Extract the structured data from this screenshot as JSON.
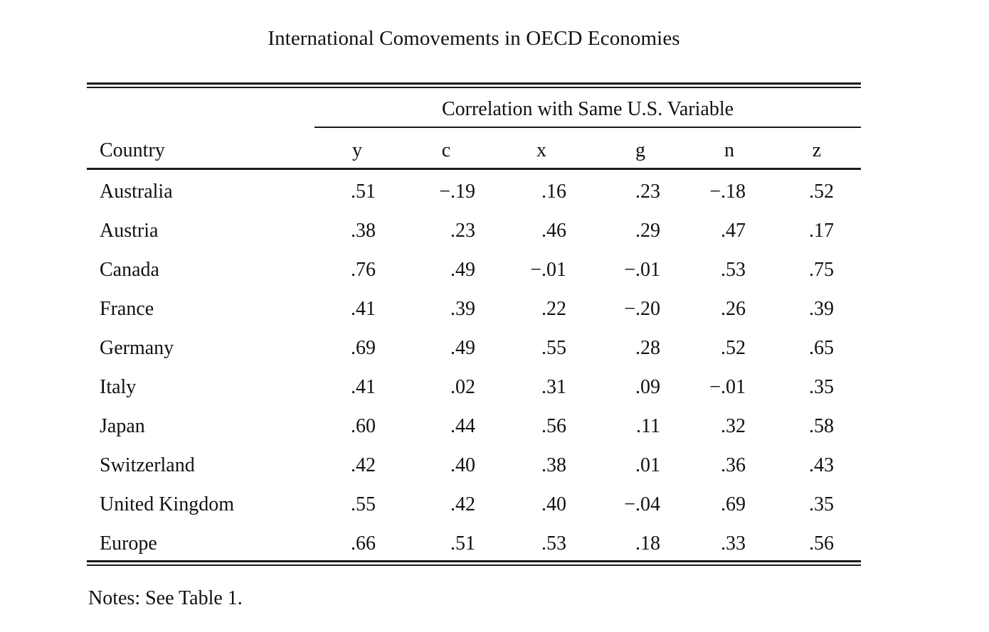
{
  "title": "International Comovements in OECD Economies",
  "spanner_label": "Correlation with Same U.S. Variable",
  "columns": {
    "country": "Country",
    "vars": [
      "y",
      "c",
      "x",
      "g",
      "n",
      "z"
    ]
  },
  "rows": [
    {
      "country": "Australia",
      "values": [
        ".51",
        "−.19",
        ".16",
        ".23",
        "−.18",
        ".52"
      ]
    },
    {
      "country": "Austria",
      "values": [
        ".38",
        ".23",
        ".46",
        ".29",
        ".47",
        ".17"
      ]
    },
    {
      "country": "Canada",
      "values": [
        ".76",
        ".49",
        "−.01",
        "−.01",
        ".53",
        ".75"
      ]
    },
    {
      "country": "France",
      "values": [
        ".41",
        ".39",
        ".22",
        "−.20",
        ".26",
        ".39"
      ]
    },
    {
      "country": "Germany",
      "values": [
        ".69",
        ".49",
        ".55",
        ".28",
        ".52",
        ".65"
      ]
    },
    {
      "country": "Italy",
      "values": [
        ".41",
        ".02",
        ".31",
        ".09",
        "−.01",
        ".35"
      ]
    },
    {
      "country": "Japan",
      "values": [
        ".60",
        ".44",
        ".56",
        ".11",
        ".32",
        ".58"
      ]
    },
    {
      "country": "Switzerland",
      "values": [
        ".42",
        ".40",
        ".38",
        ".01",
        ".36",
        ".43"
      ]
    },
    {
      "country": "United Kingdom",
      "values": [
        ".55",
        ".42",
        ".40",
        "−.04",
        ".69",
        ".35"
      ]
    },
    {
      "country": "Europe",
      "values": [
        ".66",
        ".51",
        ".53",
        ".18",
        ".33",
        ".56"
      ]
    }
  ],
  "notes": "Notes:  See Table 1."
}
